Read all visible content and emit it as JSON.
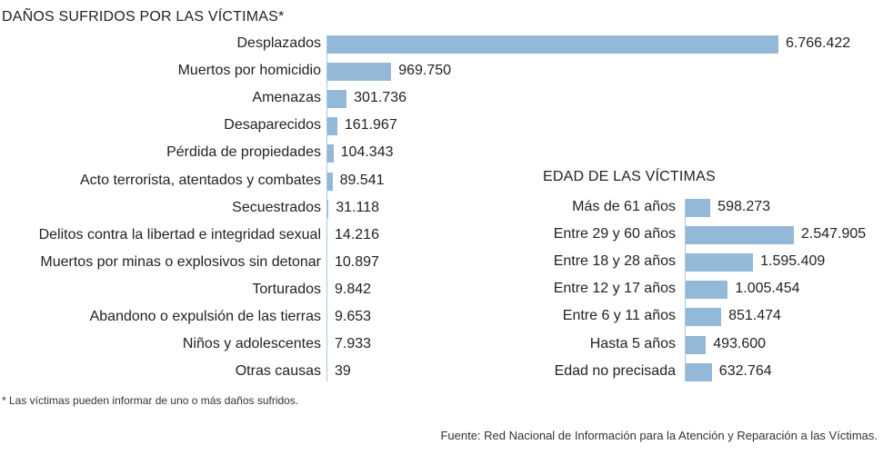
{
  "chart_data": [
    {
      "type": "bar",
      "orientation": "horizontal",
      "title": "DAÑOS SUFRIDOS POR LAS VÍCTIMAS*",
      "categories": [
        "Desplazados",
        "Muertos por homicidio",
        "Amenazas",
        "Desaparecidos",
        "Pérdida de propiedades",
        "Acto terrorista, atentados y combates",
        "Secuestrados",
        "Delitos contra la libertad e integridad sexual",
        "Muertos por minas o explosivos sin detonar",
        "Torturados",
        "Abandono o expulsión de las tierras",
        "Niños y adolescentes",
        "Otras causas"
      ],
      "values": [
        6766422,
        969750,
        301736,
        161967,
        104343,
        89541,
        31118,
        14216,
        10897,
        9842,
        9653,
        7933,
        39
      ],
      "value_labels": [
        "6.766.422",
        "969.750",
        "301.736",
        "161.967",
        "104.343",
        "89.541",
        "31.118",
        "14.216",
        "10.897",
        "9.842",
        "9.653",
        "7.933",
        "39"
      ],
      "color": "#94b9d8"
    },
    {
      "type": "bar",
      "orientation": "horizontal",
      "title": "EDAD DE LAS VÍCTIMAS",
      "categories": [
        "Más de 61 años",
        "Entre 29 y 60 años",
        "Entre 18 y 28 años",
        "Entre 12 y 17 años",
        "Entre 6 y 11 años",
        "Hasta 5 años",
        "Edad no precisada"
      ],
      "values": [
        598273,
        2547905,
        1595409,
        1005454,
        851474,
        493600,
        632764
      ],
      "value_labels": [
        "598.273",
        "2.547.905",
        "1.595.409",
        "1.005.454",
        "851.474",
        "493.600",
        "632.764"
      ],
      "color": "#94b9d8"
    }
  ],
  "footnote": "* Las víctimas pueden informar de uno o más daños sufridos.",
  "source": "Fuente: Red Nacional de Información para la Atención y Reparación a las Víctimas."
}
